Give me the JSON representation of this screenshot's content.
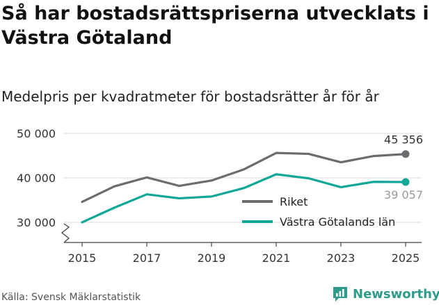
{
  "chart_data": {
    "type": "line",
    "title": "Så har bostadsrättspriserna utvecklats i Västra Götaland",
    "subtitle": "Medelpris per kvadratmeter för bostadsrätter år för år",
    "x": [
      2015,
      2016,
      2017,
      2018,
      2019,
      2020,
      2021,
      2022,
      2023,
      2024,
      2025
    ],
    "x_tick_labels": [
      "2015",
      "2017",
      "2019",
      "2021",
      "2023",
      "2025"
    ],
    "y_tick_values": [
      30000,
      40000,
      50000
    ],
    "y_tick_labels": [
      "30 000",
      "40 000",
      "50 000"
    ],
    "ylim": [
      25000,
      52000
    ],
    "y_axis_break": true,
    "grid": true,
    "legend_position": "right-bottom",
    "series": [
      {
        "name": "Riket",
        "color": "#6b6b70",
        "values": [
          34600,
          38100,
          40100,
          38200,
          39400,
          41900,
          45600,
          45400,
          43500,
          44900,
          45356
        ],
        "end_label": "45 356"
      },
      {
        "name": "Västra Götalands län",
        "color": "#11a797",
        "values": [
          30000,
          33300,
          36300,
          35400,
          35800,
          37700,
          40800,
          39900,
          37900,
          39100,
          39057
        ],
        "end_label": "39 057"
      }
    ]
  },
  "footer": {
    "source": "Källa: Svensk Mäklarstatistik",
    "brand": "Newsworthy"
  }
}
